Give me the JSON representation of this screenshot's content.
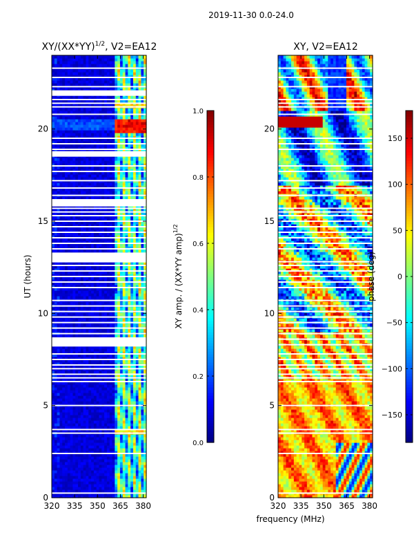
{
  "suptitle": "2019-11-30 0.0-24.0",
  "chart_data": [
    {
      "type": "heatmap",
      "title_main": "XY/(XX*YY)",
      "title_sup": "1/2",
      "title_suffix": ", V2=EA12",
      "xlabel": "",
      "ylabel": "UT (hours)",
      "xlim": [
        320,
        382
      ],
      "ylim": [
        0,
        24
      ],
      "xticks": [
        320,
        335,
        350,
        365,
        380
      ],
      "yticks": [
        0,
        5,
        10,
        15,
        20
      ],
      "colormap": "jet",
      "colorbar": {
        "label_main": "XY amp. / (XX*YY amp)",
        "label_sup": "1/2",
        "min": 0.0,
        "max": 1.0,
        "ticks": [
          0.0,
          0.2,
          0.4,
          0.6,
          0.8,
          1.0
        ],
        "tick_labels": [
          "0.0",
          "0.2",
          "0.4",
          "0.6",
          "0.8",
          "1.0"
        ]
      },
      "flagged_hours": [
        0.25,
        2.4,
        3.5,
        3.7,
        5.0,
        6.3,
        6.5,
        6.7,
        7.0,
        7.2,
        7.5,
        7.8,
        8.3,
        8.6,
        8.9,
        9.2,
        9.5,
        9.8,
        10.1,
        10.4,
        10.7,
        11.4,
        11.7,
        12.0,
        12.3,
        12.6,
        12.8,
        13.5,
        13.8,
        14.1,
        14.4,
        14.7,
        15.0,
        15.3,
        15.5,
        15.7,
        16.4,
        16.8,
        17.2,
        17.7,
        18.0,
        18.9,
        19.2,
        19.5,
        20.8,
        21.2,
        21.4,
        21.6,
        22.3,
        22.8,
        23.3
      ],
      "flagged_blocks": [
        [
          12.8,
          13.3
        ],
        [
          8.2,
          8.7
        ],
        [
          15.8,
          16.2
        ],
        [
          18.5,
          18.8
        ],
        [
          21.8,
          22.1
        ]
      ],
      "bright_band_mhz": [
        362,
        382
      ],
      "peak_hour": 20.2
    },
    {
      "type": "heatmap",
      "title": "XY, V2=EA12",
      "xlabel": "frequency (MHz)",
      "ylabel": "",
      "xlim": [
        320,
        382
      ],
      "ylim": [
        0,
        24
      ],
      "xticks": [
        320,
        335,
        350,
        365,
        380
      ],
      "yticks": [
        0,
        5,
        10,
        15,
        20
      ],
      "colormap": "jet",
      "colorbar": {
        "label": "phase (deg)",
        "min": -180,
        "max": 180,
        "ticks": [
          -150,
          -100,
          -50,
          0,
          50,
          100,
          150
        ],
        "tick_labels": [
          "−150",
          "−100",
          "−50",
          "0",
          "50",
          "100",
          "150"
        ]
      },
      "flagged_hours": [
        0.25,
        2.4,
        3.5,
        3.7,
        5.0,
        6.3,
        6.5,
        6.7,
        7.0,
        7.2,
        7.5,
        7.8,
        8.3,
        8.6,
        8.9,
        9.2,
        9.5,
        9.8,
        10.1,
        10.4,
        10.7,
        11.4,
        11.7,
        12.0,
        12.3,
        12.6,
        12.8,
        13.5,
        13.8,
        14.1,
        14.4,
        14.7,
        15.0,
        15.3,
        15.5,
        15.7,
        16.4,
        16.8,
        17.2,
        17.7,
        18.0,
        18.9,
        19.2,
        19.5,
        20.8,
        21.2,
        21.4,
        21.6,
        22.3,
        22.8,
        23.3
      ]
    }
  ]
}
